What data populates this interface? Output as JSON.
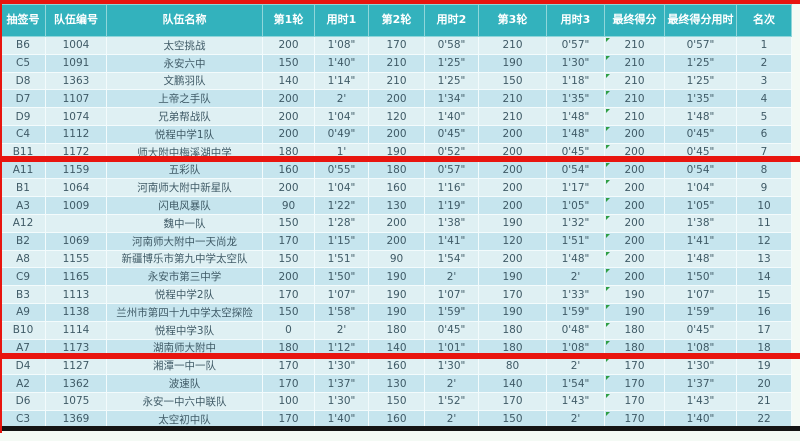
{
  "table": {
    "headers": [
      "抽签号",
      "队伍编号",
      "队伍名称",
      "第1轮",
      "用时1",
      "第2轮",
      "用时2",
      "第3轮",
      "用时3",
      "最终得分",
      "最终得分用时",
      "名次"
    ],
    "header_keys": [
      "draw-no",
      "team-no",
      "team-name",
      "round1-score",
      "round1-time",
      "round2-score",
      "round2-time",
      "round3-score",
      "round3-time",
      "final-score",
      "final-time",
      "rank"
    ],
    "rows": [
      [
        "B6",
        "1004",
        "太空挑战",
        "200",
        "1'08\"",
        "170",
        "0'58\"",
        "210",
        "0'57\"",
        "210",
        "0'57\"",
        "1"
      ],
      [
        "C5",
        "1091",
        "永安六中",
        "150",
        "1'40\"",
        "210",
        "1'25\"",
        "190",
        "1'30\"",
        "210",
        "1'25\"",
        "2"
      ],
      [
        "D8",
        "1363",
        "文鹏羽队",
        "140",
        "1'14\"",
        "210",
        "1'25\"",
        "150",
        "1'18\"",
        "210",
        "1'25\"",
        "3"
      ],
      [
        "D7",
        "1107",
        "上帝之手队",
        "200",
        "2'",
        "200",
        "1'34\"",
        "210",
        "1'35\"",
        "210",
        "1'35\"",
        "4"
      ],
      [
        "D9",
        "1074",
        "兄弟帮战队",
        "200",
        "1'04\"",
        "120",
        "1'40\"",
        "210",
        "1'48\"",
        "210",
        "1'48\"",
        "5"
      ],
      [
        "C4",
        "1112",
        "悦程中学1队",
        "200",
        "0'49\"",
        "200",
        "0'45\"",
        "200",
        "1'48\"",
        "200",
        "0'45\"",
        "6"
      ],
      [
        "B11",
        "1172",
        "师大附中梅溪湖中学",
        "180",
        "1'",
        "190",
        "0'52\"",
        "200",
        "0'45\"",
        "200",
        "0'45\"",
        "7"
      ],
      [
        "A11",
        "1159",
        "五彩队",
        "160",
        "0'55\"",
        "180",
        "0'57\"",
        "200",
        "0'54\"",
        "200",
        "0'54\"",
        "8"
      ],
      [
        "B1",
        "1064",
        "河南师大附中新星队",
        "200",
        "1'04\"",
        "160",
        "1'16\"",
        "200",
        "1'17\"",
        "200",
        "1'04\"",
        "9"
      ],
      [
        "A3",
        "1009",
        "闪电风暴队",
        "90",
        "1'22\"",
        "130",
        "1'19\"",
        "200",
        "1'05\"",
        "200",
        "1'05\"",
        "10"
      ],
      [
        "A12",
        "",
        "魏中一队",
        "150",
        "1'28\"",
        "200",
        "1'38\"",
        "190",
        "1'32\"",
        "200",
        "1'38\"",
        "11"
      ],
      [
        "B2",
        "1069",
        "河南师大附中一天尚龙",
        "170",
        "1'15\"",
        "200",
        "1'41\"",
        "120",
        "1'51\"",
        "200",
        "1'41\"",
        "12"
      ],
      [
        "A8",
        "1155",
        "新疆博乐市第九中学太空队",
        "150",
        "1'51\"",
        "90",
        "1'54\"",
        "200",
        "1'48\"",
        "200",
        "1'48\"",
        "13"
      ],
      [
        "C9",
        "1165",
        "永安市第三中学",
        "200",
        "1'50\"",
        "190",
        "2'",
        "190",
        "2'",
        "200",
        "1'50\"",
        "14"
      ],
      [
        "B3",
        "1113",
        "悦程中学2队",
        "170",
        "1'07\"",
        "190",
        "1'07\"",
        "170",
        "1'33\"",
        "190",
        "1'07\"",
        "15"
      ],
      [
        "A9",
        "1138",
        "兰州市第四十九中学太空探险",
        "150",
        "1'58\"",
        "190",
        "1'59\"",
        "190",
        "1'59\"",
        "190",
        "1'59\"",
        "16"
      ],
      [
        "B10",
        "1114",
        "悦程中学3队",
        "0",
        "2'",
        "180",
        "0'45\"",
        "180",
        "0'48\"",
        "180",
        "0'45\"",
        "17"
      ],
      [
        "A7",
        "1173",
        "湖南师大附中",
        "180",
        "1'12\"",
        "140",
        "1'01\"",
        "180",
        "1'08\"",
        "180",
        "1'08\"",
        "18"
      ],
      [
        "D4",
        "1127",
        "湘潭一中一队",
        "170",
        "1'30\"",
        "160",
        "1'30\"",
        "80",
        "2'",
        "170",
        "1'30\"",
        "19"
      ],
      [
        "A2",
        "1362",
        "波速队",
        "170",
        "1'37\"",
        "130",
        "2'",
        "140",
        "1'54\"",
        "170",
        "1'37\"",
        "20"
      ],
      [
        "D6",
        "1075",
        "永安一中六中联队",
        "100",
        "1'30\"",
        "150",
        "1'52\"",
        "170",
        "1'43\"",
        "170",
        "1'43\"",
        "21"
      ],
      [
        "C3",
        "1369",
        "太空初中队",
        "170",
        "1'40\"",
        "160",
        "2'",
        "150",
        "2'",
        "170",
        "1'40\"",
        "22"
      ]
    ],
    "comment_marker_column": 9,
    "annotations": {
      "red_line_after_ranks": [
        7,
        18
      ],
      "red_line_top": true,
      "black_bar_bottom": true
    },
    "colors": {
      "header_bg": "#33b2bd",
      "header_text": "#ffffff",
      "row_light": "#dff0f3",
      "row_dark": "#c6e5ee",
      "cell_text": "#3f5a66",
      "highlight_red": "#e8150f",
      "bottom_bar_black": "#151515",
      "comment_marker_green": "#2e9e44"
    }
  }
}
